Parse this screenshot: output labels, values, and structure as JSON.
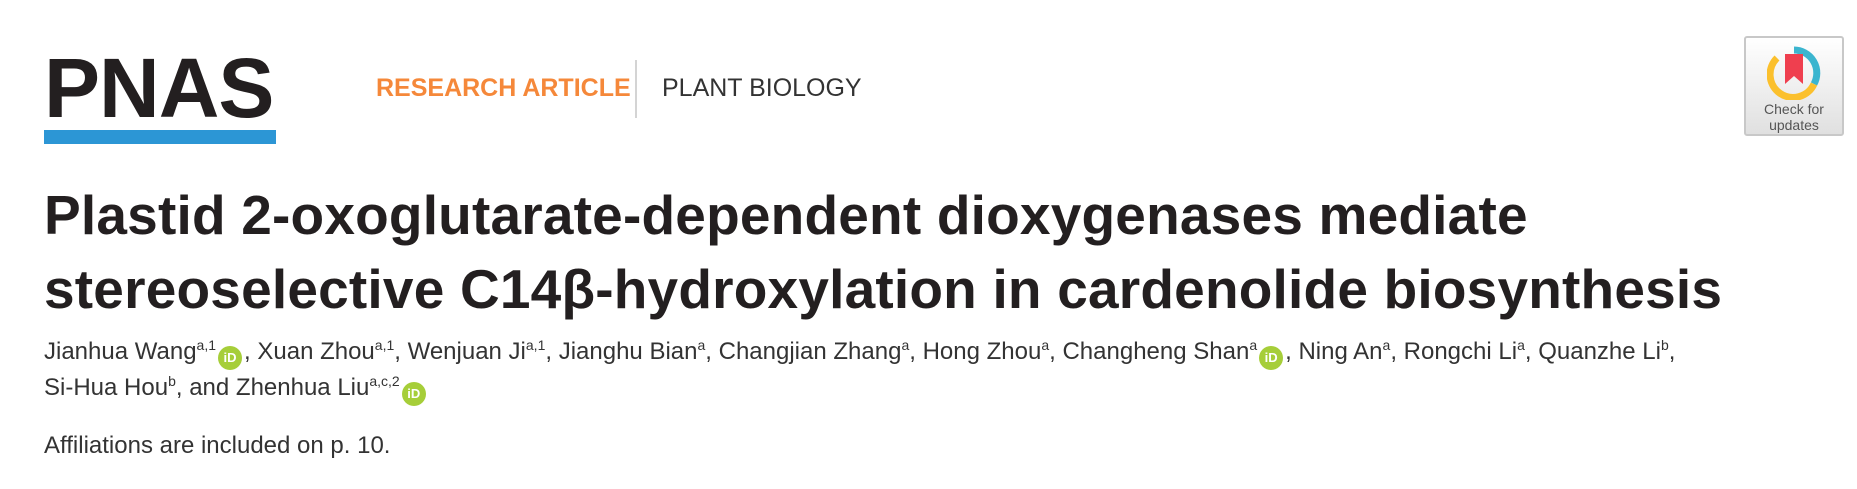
{
  "header": {
    "logo": "PNAS",
    "colors": {
      "logo_bar": "#2c96d5",
      "research_article": "#f5883a",
      "orcid": "#a6ce39"
    },
    "article_type": "RESEARCH ARTICLE",
    "subject": "PLANT BIOLOGY",
    "check_updates": {
      "line1": "Check for",
      "line2": "updates",
      "icon": "crossmark-icon"
    }
  },
  "title": {
    "line1": "Plastid 2-oxoglutarate-dependent dioxygenases mediate",
    "line2": "stereoselective C14β-hydroxylation in cardenolide biosynthesis"
  },
  "authors": {
    "line1": [
      {
        "name": "Jianhua Wang",
        "sup": "a,1",
        "orcid": true,
        "sep": ", "
      },
      {
        "name": "Xuan Zhou",
        "sup": "a,1",
        "orcid": false,
        "sep": ", "
      },
      {
        "name": "Wenjuan Ji",
        "sup": "a,1",
        "orcid": false,
        "sep": ", "
      },
      {
        "name": "Jianghu Bian",
        "sup": "a",
        "orcid": false,
        "sep": ", "
      },
      {
        "name": "Changjian Zhang",
        "sup": "a",
        "orcid": false,
        "sep": ", "
      },
      {
        "name": "Hong Zhou",
        "sup": "a",
        "orcid": false,
        "sep": ", "
      },
      {
        "name": "Changheng Shan",
        "sup": "a",
        "orcid": true,
        "sep": ", "
      },
      {
        "name": "Ning An",
        "sup": "a",
        "orcid": false,
        "sep": ", "
      },
      {
        "name": "Rongchi Li",
        "sup": "a",
        "orcid": false,
        "sep": ", "
      },
      {
        "name": "Quanzhe Li",
        "sup": "b",
        "orcid": false,
        "sep": ","
      }
    ],
    "line2": [
      {
        "name": "Si-Hua Hou",
        "sup": "b",
        "orcid": false,
        "sep": ", and "
      },
      {
        "name": "Zhenhua Liu",
        "sup": "a,c,2",
        "orcid": true,
        "sep": ""
      }
    ],
    "orcid_label": "iD"
  },
  "affiliations": "Affiliations are included on p. 10."
}
